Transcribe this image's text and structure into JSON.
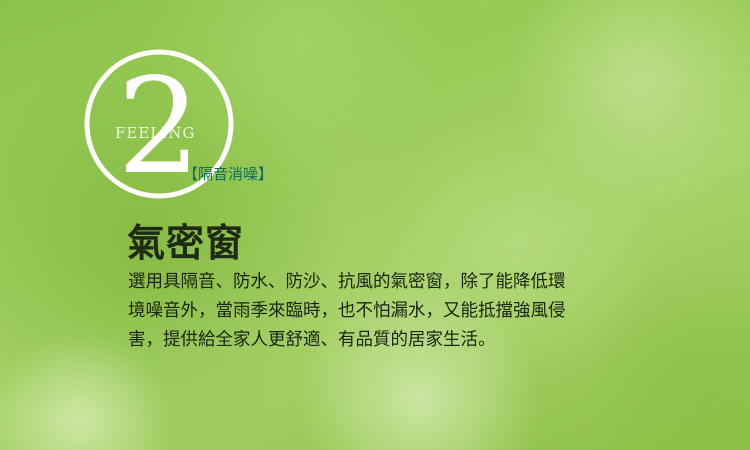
{
  "badge": {
    "number": "2",
    "word": "FEELING"
  },
  "tag": "【隔音消噪】",
  "title": "氣密窗",
  "description": "選用具隔音、防水、防沙、抗風的氣密窗，除了能降低環境噪音外，當雨季來臨時，也不怕漏水，又能抵擋強風侵害，提供給全家人更舒適、有品質的居家生活。",
  "colors": {
    "background": "#9ccc5a",
    "badge": "#ffffff",
    "tag": "#0f6e5a",
    "text": "#1a2410"
  }
}
